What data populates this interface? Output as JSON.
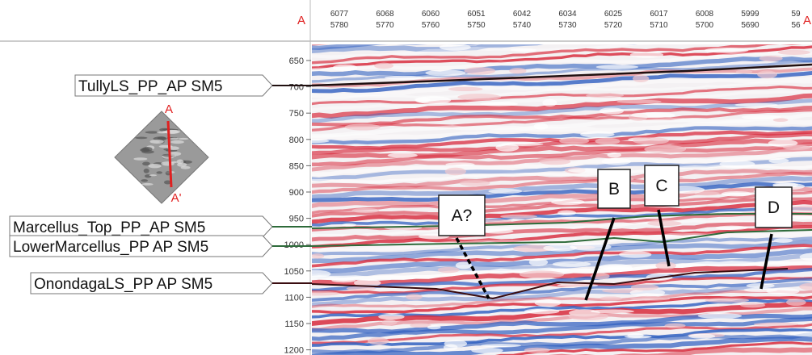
{
  "section_labels": {
    "start": "A",
    "end": "A"
  },
  "trace_rows": [
    [
      "6077",
      "6068",
      "6060",
      "6051",
      "6042",
      "6034",
      "6025",
      "6017",
      "6008",
      "5999",
      "59"
    ],
    [
      "5780",
      "5770",
      "5760",
      "5750",
      "5740",
      "5730",
      "5720",
      "5710",
      "5700",
      "5690",
      "56"
    ]
  ],
  "depth_ticks": [
    "650",
    "700",
    "750",
    "800",
    "850",
    "900",
    "950",
    "1000",
    "1050",
    "1100",
    "1150",
    "1200"
  ],
  "horizons": [
    {
      "label": "TullyLS_PP_AP SM5"
    },
    {
      "label": "Marcellus_Top_PP_AP SM5"
    },
    {
      "label": "LowerMarcellus_PP AP SM5"
    },
    {
      "label": "OnondagaLS_PP AP SM5"
    }
  ],
  "annotations": [
    "A?",
    "B",
    "C",
    "D"
  ],
  "location_map": {
    "start": "A",
    "end": "A'"
  }
}
